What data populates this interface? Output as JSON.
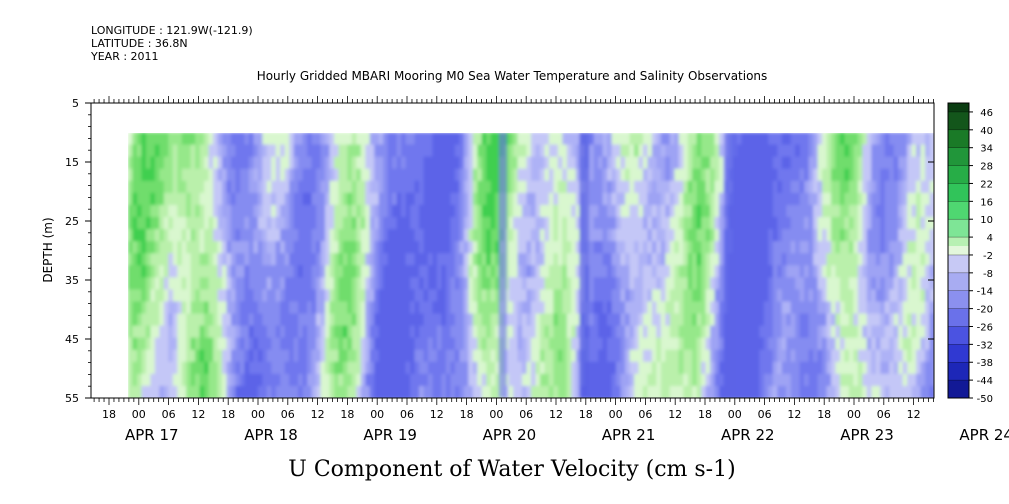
{
  "header": {
    "longitude": "LONGITUDE : 121.9W(-121.9)",
    "latitude": "LATITUDE : 36.8N",
    "year": "YEAR : 2011"
  },
  "chart_data": {
    "type": "heatmap",
    "title": "Hourly Gridded MBARI Mooring M0 Sea Water Temperature and Salinity Observations",
    "xlabel": "U Component of Water Velocity (cm s-1)",
    "ylabel": "DEPTH (m)",
    "ylim": [
      55,
      5
    ],
    "y_ticks": [
      5,
      15,
      25,
      35,
      45,
      55
    ],
    "x_hour_ticks": [
      "18",
      "00",
      "06",
      "12",
      "18",
      "00",
      "06",
      "12",
      "18",
      "00",
      "06",
      "12",
      "18",
      "00",
      "06",
      "12",
      "18",
      "00",
      "06",
      "12",
      "18",
      "00",
      "06",
      "12",
      "18",
      "00",
      "06",
      "12",
      "18",
      "00",
      "06",
      "12"
    ],
    "x_date_labels": [
      "APR 17",
      "APR 18",
      "APR 19",
      "APR 20",
      "APR 21",
      "APR 22",
      "APR 23",
      "APR 24"
    ],
    "data_depth_range_m": [
      10,
      55
    ],
    "colorbar": {
      "labels": [
        "46",
        "40",
        "34",
        "28",
        "22",
        "16",
        "10",
        "4",
        "-2",
        "-8",
        "-14",
        "-20",
        "-26",
        "-32",
        "-38",
        "-44",
        "-50"
      ],
      "range": [
        -50,
        49
      ]
    }
  }
}
